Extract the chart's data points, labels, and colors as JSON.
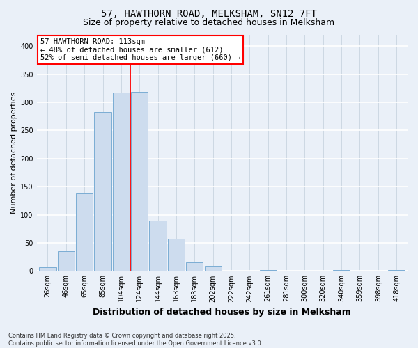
{
  "title": "57, HAWTHORN ROAD, MELKSHAM, SN12 7FT",
  "subtitle": "Size of property relative to detached houses in Melksham",
  "xlabel": "Distribution of detached houses by size in Melksham",
  "ylabel": "Number of detached properties",
  "bar_labels": [
    "26sqm",
    "46sqm",
    "65sqm",
    "85sqm",
    "104sqm",
    "124sqm",
    "144sqm",
    "163sqm",
    "183sqm",
    "202sqm",
    "222sqm",
    "242sqm",
    "261sqm",
    "281sqm",
    "300sqm",
    "320sqm",
    "340sqm",
    "359sqm",
    "398sqm",
    "418sqm"
  ],
  "bar_values": [
    7,
    35,
    138,
    283,
    317,
    318,
    90,
    57,
    15,
    9,
    0,
    0,
    2,
    0,
    0,
    0,
    1,
    0,
    0,
    2
  ],
  "bar_color": "#cddcee",
  "bar_edge_color": "#7badd4",
  "vline_x": 4.5,
  "vline_color": "red",
  "annotation_text": "57 HAWTHORN ROAD: 113sqm\n← 48% of detached houses are smaller (612)\n52% of semi-detached houses are larger (660) →",
  "annotation_box_color": "white",
  "annotation_box_edge_color": "red",
  "ylim": [
    0,
    420
  ],
  "yticks": [
    0,
    50,
    100,
    150,
    200,
    250,
    300,
    350,
    400
  ],
  "footnote": "Contains HM Land Registry data © Crown copyright and database right 2025.\nContains public sector information licensed under the Open Government Licence v3.0.",
  "bg_color": "#eaf0f8",
  "plot_bg_color": "#eaf0f8",
  "grid_color": "#ffffff",
  "grid_line_color": "#c8d4e0",
  "title_fontsize": 10,
  "subtitle_fontsize": 9,
  "xlabel_fontsize": 9,
  "ylabel_fontsize": 8,
  "tick_fontsize": 7,
  "annot_fontsize": 7.5,
  "footnote_fontsize": 6
}
